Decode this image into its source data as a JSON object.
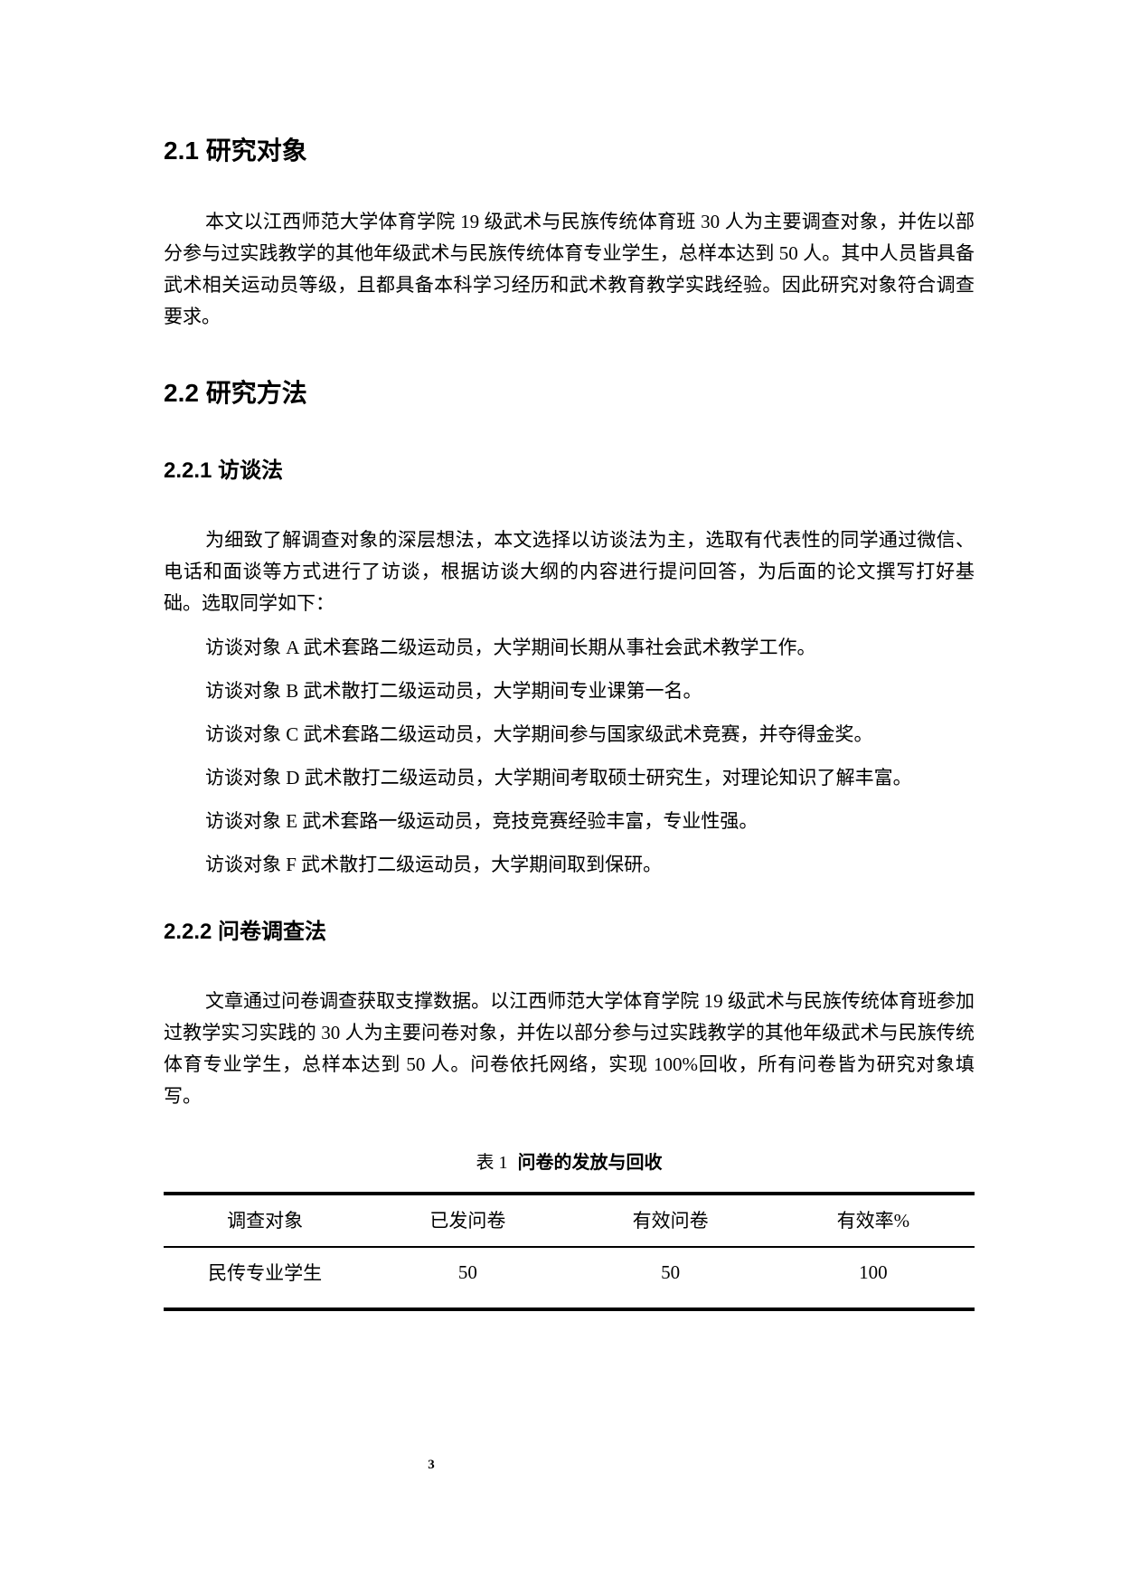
{
  "headings": {
    "s21": "2.1 研究对象",
    "s22": "2.2 研究方法",
    "s221": "2.2.1 访谈法",
    "s222": "2.2.2 问卷调查法"
  },
  "paragraphs": {
    "research_subjects": "本文以江西师范大学体育学院 19 级武术与民族传统体育班 30 人为主要调查对象，并佐以部分参与过实践教学的其他年级武术与民族传统体育专业学生，总样本达到 50 人。其中人员皆具备武术相关运动员等级，且都具备本科学习经历和武术教育教学实践经验。因此研究对象符合调查要求。",
    "interview_method": "为细致了解调查对象的深层想法，本文选择以访谈法为主，选取有代表性的同学通过微信、电话和面谈等方式进行了访谈，根据访谈大纲的内容进行提问回答，为后面的论文撰写打好基础。选取同学如下：",
    "questionnaire_method": "文章通过问卷调查获取支撑数据。以江西师范大学体育学院 19 级武术与民族传统体育班参加过教学实习实践的 30 人为主要问卷对象，并佐以部分参与过实践教学的其他年级武术与民族传统体育专业学生，总样本达到 50 人。问卷依托网络，实现 100%回收，所有问卷皆为研究对象填写。"
  },
  "interview_list": [
    "访谈对象 A 武术套路二级运动员，大学期间长期从事社会武术教学工作。",
    "访谈对象 B 武术散打二级运动员，大学期间专业课第一名。",
    "访谈对象 C 武术套路二级运动员，大学期间参与国家级武术竞赛，并夺得金奖。",
    "访谈对象 D 武术散打二级运动员，大学期间考取硕士研究生，对理论知识了解丰富。",
    "访谈对象 E 武术套路一级运动员，竞技竞赛经验丰富，专业性强。",
    "访谈对象 F 武术散打二级运动员，大学期间取到保研。"
  ],
  "table": {
    "caption_prefix": "表 1",
    "caption_title": "问卷的发放与回收",
    "headers": [
      "调查对象",
      "已发问卷",
      "有效问卷",
      "有效率%"
    ],
    "rows": [
      [
        "民传专业学生",
        "50",
        "50",
        "100"
      ]
    ]
  },
  "page_number": "3",
  "colors": {
    "text": "#000000",
    "background": "#ffffff"
  }
}
